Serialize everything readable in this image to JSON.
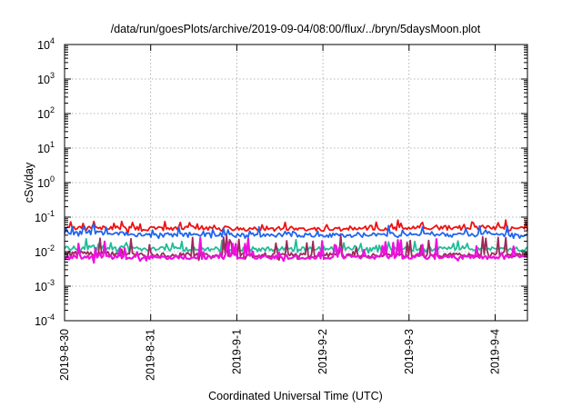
{
  "chart_data": {
    "type": "line",
    "title": "/data/run/goesPlots/archive/2019-09-04/08:00/flux/../bryn/5daysMoon.plot",
    "xlabel": "Coordinated Universal Time (UTC)",
    "ylabel": "cSv/day",
    "yscale": "log",
    "ylim": [
      0.0001,
      10000
    ],
    "xlim": [
      "2019-08-30",
      "2019-09-04 09:00"
    ],
    "grid": true,
    "y_ticks": [
      {
        "base": "10",
        "exp": "-4"
      },
      {
        "base": "10",
        "exp": "-3"
      },
      {
        "base": "10",
        "exp": "-2"
      },
      {
        "base": "10",
        "exp": "-1"
      },
      {
        "base": "10",
        "exp": "0"
      },
      {
        "base": "10",
        "exp": "1"
      },
      {
        "base": "10",
        "exp": "2"
      },
      {
        "base": "10",
        "exp": "3"
      },
      {
        "base": "10",
        "exp": "4"
      }
    ],
    "x_ticks": [
      "2019-8-30",
      "2019-8-31",
      "2019-9-1",
      "2019-9-2",
      "2019-9-3",
      "2019-9-4"
    ],
    "series": [
      {
        "color": "#ee1111",
        "x": [
          "2019-08-30 00:00",
          "2019-08-30 12:00",
          "2019-08-31 00:00",
          "2019-08-31 12:00",
          "2019-09-01 00:00",
          "2019-09-01 12:00",
          "2019-09-02 00:00",
          "2019-09-02 12:00",
          "2019-09-03 00:00",
          "2019-09-03 12:00",
          "2019-09-04 00:00",
          "2019-09-04 09:00"
        ],
        "y": [
          0.05,
          0.05,
          0.045,
          0.05,
          0.045,
          0.048,
          0.045,
          0.045,
          0.048,
          0.05,
          0.05,
          0.045
        ]
      },
      {
        "color": "#1f66ee",
        "x": [
          "2019-08-30 00:00",
          "2019-08-30 12:00",
          "2019-08-31 00:00",
          "2019-08-31 12:00",
          "2019-09-01 00:00",
          "2019-09-01 12:00",
          "2019-09-02 00:00",
          "2019-09-02 12:00",
          "2019-09-03 00:00",
          "2019-09-03 12:00",
          "2019-09-04 00:00",
          "2019-09-04 09:00"
        ],
        "y": [
          0.035,
          0.035,
          0.03,
          0.032,
          0.03,
          0.03,
          0.03,
          0.03,
          0.032,
          0.032,
          0.033,
          0.03
        ]
      },
      {
        "color": "#22bb99",
        "x": [
          "2019-08-30 00:00",
          "2019-08-30 12:00",
          "2019-08-31 00:00",
          "2019-08-31 12:00",
          "2019-09-01 00:00",
          "2019-09-01 12:00",
          "2019-09-02 00:00",
          "2019-09-02 12:00",
          "2019-09-03 00:00",
          "2019-09-03 12:00",
          "2019-09-04 00:00",
          "2019-09-04 09:00"
        ],
        "y": [
          0.013,
          0.013,
          0.012,
          0.012,
          0.012,
          0.012,
          0.012,
          0.012,
          0.012,
          0.012,
          0.012,
          0.012
        ]
      },
      {
        "color": "#9b2a5a",
        "x": [
          "2019-08-30 00:00",
          "2019-08-30 12:00",
          "2019-08-31 00:00",
          "2019-08-31 12:00",
          "2019-09-01 00:00",
          "2019-09-01 12:00",
          "2019-09-02 00:00",
          "2019-09-02 12:00",
          "2019-09-03 00:00",
          "2019-09-03 12:00",
          "2019-09-04 00:00",
          "2019-09-04 09:00"
        ],
        "y": [
          0.009,
          0.009,
          0.008,
          0.008,
          0.008,
          0.008,
          0.008,
          0.008,
          0.008,
          0.008,
          0.008,
          0.008
        ]
      },
      {
        "color": "#ee11dd",
        "x": [
          "2019-08-30 00:00",
          "2019-08-30 12:00",
          "2019-08-31 00:00",
          "2019-08-31 12:00",
          "2019-09-01 00:00",
          "2019-09-01 12:00",
          "2019-09-02 00:00",
          "2019-09-02 12:00",
          "2019-09-03 00:00",
          "2019-09-03 12:00",
          "2019-09-04 00:00",
          "2019-09-04 09:00"
        ],
        "y": [
          0.007,
          0.007,
          0.007,
          0.007,
          0.007,
          0.007,
          0.007,
          0.007,
          0.007,
          0.007,
          0.007,
          0.007
        ]
      }
    ]
  }
}
